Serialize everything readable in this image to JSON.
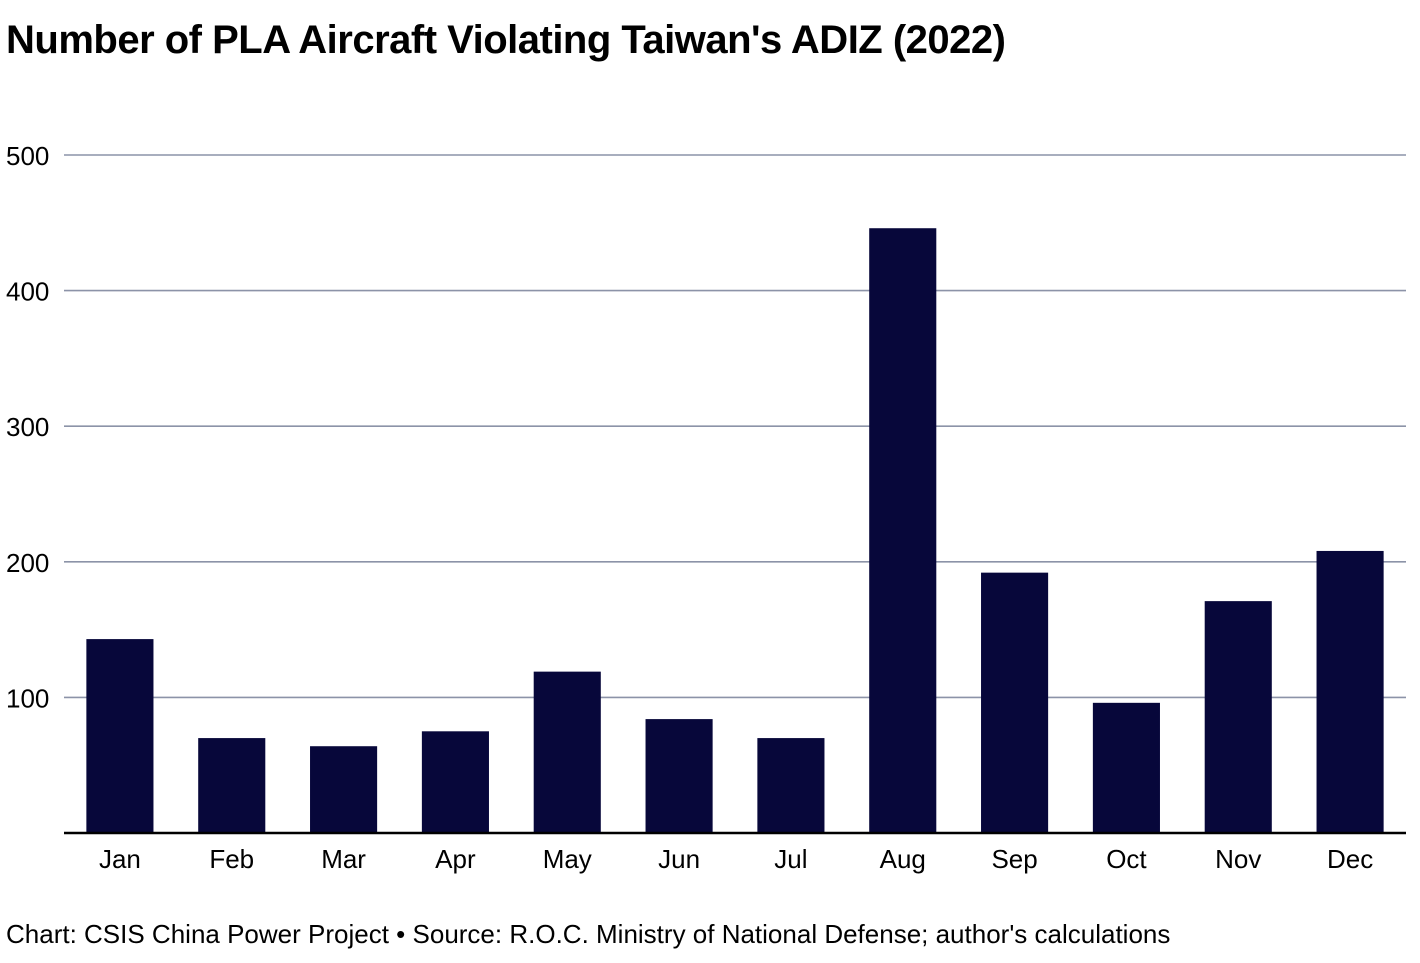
{
  "chart_data": {
    "type": "bar",
    "title": "Number of PLA Aircraft Violating Taiwan's ADIZ (2022)",
    "categories": [
      "Jan",
      "Feb",
      "Mar",
      "Apr",
      "May",
      "Jun",
      "Jul",
      "Aug",
      "Sep",
      "Oct",
      "Nov",
      "Dec"
    ],
    "values": [
      143,
      70,
      64,
      75,
      119,
      84,
      70,
      446,
      192,
      96,
      171,
      208
    ],
    "ylim": [
      0,
      500
    ],
    "yticks": [
      100,
      200,
      300,
      400,
      500
    ],
    "xlabel": "",
    "ylabel": "",
    "grid": true,
    "bar_color": "#07073a",
    "grid_color": "#8c93a8"
  },
  "footer": {
    "credit": "Chart: CSIS China Power Project",
    "separator": "•",
    "source": "Source: R.O.C. Ministry of National Defense; author's calculations"
  }
}
